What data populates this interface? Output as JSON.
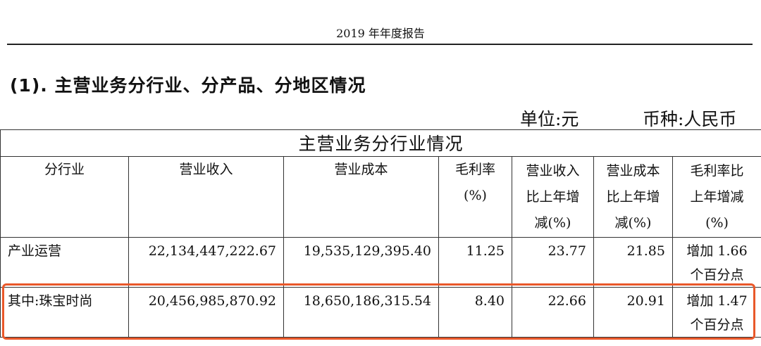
{
  "header": {
    "title": "2019 年年度报告"
  },
  "section": {
    "heading": "(1). 主营业务分行业、分产品、分地区情况"
  },
  "meta": {
    "unit": "单位:元",
    "currency": "币种:人民币"
  },
  "table": {
    "title": "主营业务分行业情况",
    "columns": {
      "industry": "分行业",
      "revenue": "营业收入",
      "cost": "营业成本",
      "margin": [
        "毛利率",
        "(%)"
      ],
      "revenue_yoy": [
        "营业收入",
        "比上年增",
        "减(%)"
      ],
      "cost_yoy": [
        "营业成本",
        "比上年增",
        "减(%)"
      ],
      "margin_yoy": [
        "毛利率比",
        "上年增减",
        "(%)"
      ]
    },
    "rows": [
      {
        "industry": "产业运营",
        "revenue": "22,134,447,222.67",
        "cost": "19,535,129,395.40",
        "margin": "11.25",
        "revenue_yoy": "23.77",
        "cost_yoy": "21.85",
        "margin_yoy": [
          "增加 1.66",
          "个百分点"
        ]
      },
      {
        "industry": "其中:珠宝时尚",
        "revenue": "20,456,985,870.92",
        "cost": "18,650,186,315.54",
        "margin": "8.40",
        "revenue_yoy": "22.66",
        "cost_yoy": "20.91",
        "margin_yoy": [
          "增加 1.47",
          "个百分点"
        ]
      }
    ]
  },
  "colors": {
    "highlight": "#e9582a",
    "border": "#333333"
  }
}
